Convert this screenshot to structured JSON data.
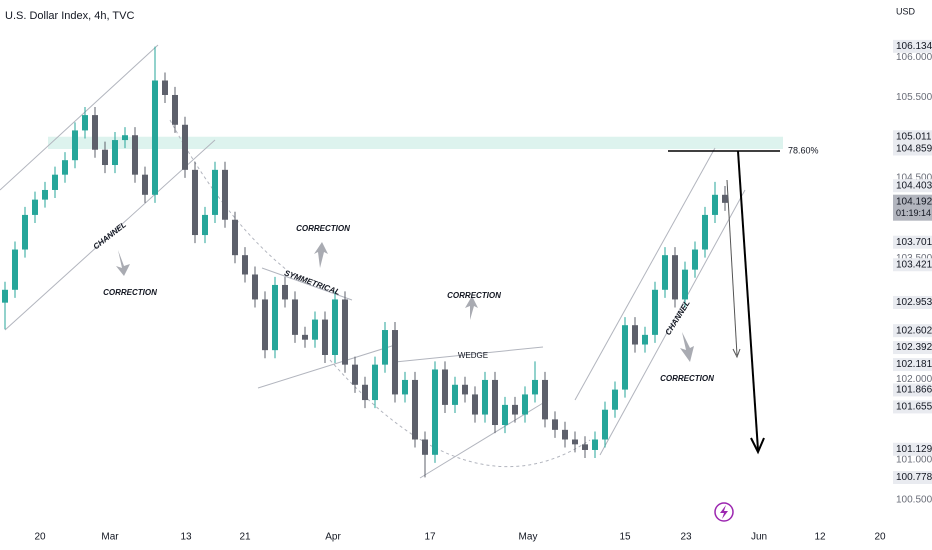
{
  "chart_data": {
    "type": "candlestick",
    "title": "U.S. Dollar Index, 4h, TVC",
    "currency": "USD",
    "up_color": "#26a69a",
    "down_color": "#5d606b",
    "xlim": [
      -0.5,
      89
    ],
    "ylim": [
      100.25,
      106.71
    ],
    "xticks": [
      {
        "value": 3.5,
        "label": "20"
      },
      {
        "value": 10.5,
        "label": "Mar"
      },
      {
        "value": 18.1,
        "label": "13"
      },
      {
        "value": 24,
        "label": "21"
      },
      {
        "value": 32.8,
        "label": "Apr"
      },
      {
        "value": 42.5,
        "label": "17"
      },
      {
        "value": 52.3,
        "label": "May"
      },
      {
        "value": 62,
        "label": "15"
      },
      {
        "value": 68.1,
        "label": "23"
      },
      {
        "value": 75.4,
        "label": "Jun"
      },
      {
        "value": 81.5,
        "label": "12"
      },
      {
        "value": 87.5,
        "label": "20"
      }
    ],
    "yticks": [
      {
        "value": 106,
        "label": "106.000"
      },
      {
        "value": 105.5,
        "label": "105.500"
      },
      {
        "value": 104.5,
        "label": "104.500"
      },
      {
        "value": 103.5,
        "label": "103.500"
      },
      {
        "value": 102,
        "label": "102.000"
      },
      {
        "value": 101,
        "label": "101.000"
      },
      {
        "value": 100.5,
        "label": "100.500"
      }
    ],
    "price_tags": [
      {
        "value": 106.134,
        "label": "106.134"
      },
      {
        "value": 105.011,
        "label": "105.011"
      },
      {
        "value": 104.859,
        "label": "104.859"
      },
      {
        "value": 104.403,
        "label": "104.403"
      },
      {
        "value": 103.701,
        "label": "103.701"
      },
      {
        "value": 103.421,
        "label": "103.421"
      },
      {
        "value": 102.953,
        "label": "102.953"
      },
      {
        "value": 102.602,
        "label": "102.602"
      },
      {
        "value": 102.392,
        "label": "102.392"
      },
      {
        "value": 102.181,
        "label": "102.181"
      },
      {
        "value": 101.866,
        "label": "101.866"
      },
      {
        "value": 101.655,
        "label": "101.655"
      },
      {
        "value": 101.129,
        "label": "101.129"
      },
      {
        "value": 100.778,
        "label": "100.778"
      }
    ],
    "current_price": {
      "value": 104.192,
      "label": "104.192"
    },
    "countdown": "01:19:14",
    "fib_label": "78.60%",
    "annotations": [
      "CHANNEL",
      "CORRECTION",
      "CORRECTION",
      "SYMMETRICAL",
      "CORRECTION",
      "WEDGE",
      "CHANNEL",
      "CORRECTION"
    ],
    "open": [
      102.95,
      103.11,
      103.61,
      104.04,
      104.23,
      104.35,
      104.54,
      104.72,
      105.09,
      105.28,
      104.85,
      104.66,
      104.97,
      105.03,
      104.54,
      104.29,
      105.71,
      105.53,
      105.16,
      104.6,
      103.79,
      104.04,
      104.6,
      103.98,
      103.54,
      103.3,
      102.99,
      102.36,
      103.17,
      102.99,
      102.55,
      102.49,
      102.74,
      102.3,
      102.99,
      102.18,
      101.93,
      101.74,
      102.18,
      102.61,
      101.81,
      101.99,
      101.25,
      101.06,
      102.12,
      101.68,
      101.93,
      101.81,
      101.56,
      101.99,
      101.43,
      101.68,
      101.56,
      101.81,
      101.99,
      101.5,
      101.37,
      101.25,
      101.19,
      101.12,
      101.25,
      101.62,
      101.87,
      102.67,
      102.43,
      102.55,
      103.11,
      103.54,
      102.99,
      103.36,
      103.61,
      104.04,
      104.29
    ],
    "high": [
      103.21,
      103.71,
      104.14,
      104.33,
      104.45,
      104.64,
      104.82,
      105.19,
      105.38,
      105.38,
      104.95,
      105.07,
      105.13,
      105.13,
      104.64,
      106.13,
      105.81,
      105.63,
      105.26,
      104.7,
      104.14,
      104.7,
      104.7,
      104.08,
      103.64,
      103.4,
      103.09,
      103.27,
      103.27,
      103.09,
      102.65,
      102.84,
      102.84,
      103.09,
      103.09,
      102.28,
      102.03,
      102.28,
      102.71,
      102.71,
      102.09,
      102.09,
      101.35,
      102.22,
      102.22,
      102.03,
      102.03,
      101.91,
      102.09,
      102.09,
      101.78,
      101.78,
      101.91,
      102.22,
      102.09,
      101.6,
      101.47,
      101.35,
      101.29,
      101.35,
      101.72,
      101.97,
      102.77,
      102.77,
      102.65,
      103.21,
      103.64,
      103.64,
      103.46,
      103.71,
      104.14,
      104.45,
      104.4
    ],
    "low": [
      102.62,
      103.01,
      103.51,
      103.94,
      104.13,
      104.25,
      104.44,
      104.62,
      104.99,
      104.75,
      104.56,
      104.56,
      104.87,
      104.44,
      104.19,
      104.19,
      105.43,
      105.06,
      104.5,
      103.69,
      103.69,
      103.94,
      103.88,
      103.44,
      103.2,
      102.89,
      102.26,
      102.26,
      102.89,
      102.45,
      102.39,
      102.39,
      102.2,
      102.2,
      102.08,
      101.83,
      101.64,
      101.64,
      102.08,
      101.71,
      101.71,
      101.15,
      100.78,
      100.96,
      101.58,
      101.58,
      101.71,
      101.46,
      101.46,
      101.33,
      101.33,
      101.46,
      101.46,
      101.71,
      101.4,
      101.27,
      101.15,
      101.09,
      101.02,
      101.02,
      101.15,
      101.52,
      101.77,
      102.33,
      102.33,
      102.45,
      103.01,
      102.89,
      102.89,
      103.26,
      103.51,
      103.94,
      104.09
    ],
    "close": [
      103.11,
      103.61,
      104.04,
      104.23,
      104.35,
      104.54,
      104.72,
      105.09,
      105.28,
      104.85,
      104.66,
      104.97,
      105.03,
      104.54,
      104.29,
      105.71,
      105.53,
      105.16,
      104.6,
      103.79,
      104.04,
      104.6,
      103.98,
      103.54,
      103.3,
      102.99,
      102.36,
      103.17,
      102.99,
      102.55,
      102.49,
      102.74,
      102.3,
      102.99,
      102.18,
      101.93,
      101.74,
      102.18,
      102.61,
      101.81,
      101.99,
      101.25,
      101.06,
      102.12,
      101.68,
      101.93,
      101.81,
      101.56,
      101.99,
      101.43,
      101.68,
      101.56,
      101.81,
      101.99,
      101.5,
      101.37,
      101.25,
      101.19,
      101.12,
      101.25,
      101.62,
      101.87,
      102.67,
      102.43,
      102.55,
      103.11,
      103.54,
      102.99,
      103.36,
      103.61,
      104.04,
      104.29,
      104.19
    ]
  }
}
